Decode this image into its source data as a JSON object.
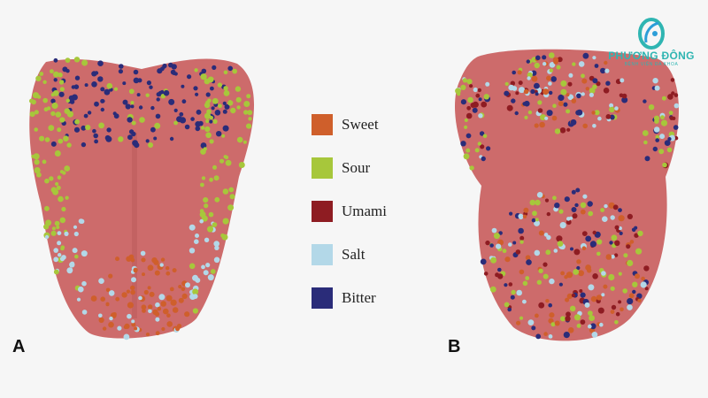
{
  "logo": {
    "name": "PHƯƠNG ĐÔNG",
    "subtitle": "BỆNH VIỆN ĐA KHOA"
  },
  "panels": [
    {
      "label": "A"
    },
    {
      "label": "B"
    }
  ],
  "legend": [
    {
      "key": "sweet",
      "label": "Sweet",
      "color": "#cf5f2b"
    },
    {
      "key": "sour",
      "label": "Sour",
      "color": "#a7c73b"
    },
    {
      "key": "umami",
      "label": "Umami",
      "color": "#8e1c22"
    },
    {
      "key": "salt",
      "label": "Salt",
      "color": "#b3d8e8"
    },
    {
      "key": "bitter",
      "label": "Bitter",
      "color": "#2a2c79"
    }
  ],
  "tongue_color": "#cd6b6b"
}
